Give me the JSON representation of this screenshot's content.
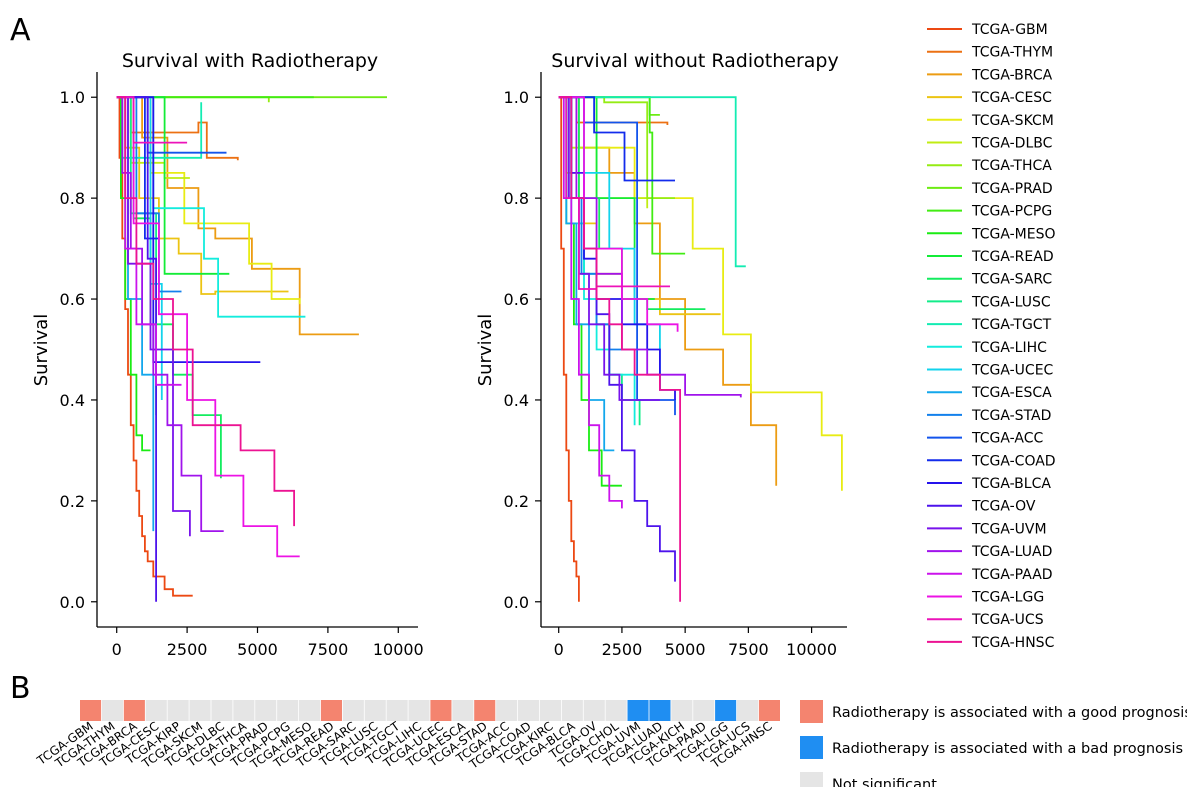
{
  "panels": {
    "a": "A",
    "b": "B"
  },
  "chart_data": [
    {
      "type": "line",
      "step": true,
      "title": "Survival with Radiotherapy",
      "xlabel": "",
      "ylabel": "Survival",
      "xlim": [
        -700,
        10700
      ],
      "ylim": [
        -0.05,
        1.05
      ],
      "xticks": [
        0,
        2500,
        5000,
        7500,
        10000
      ],
      "yticks": [
        0.0,
        0.2,
        0.4,
        0.6,
        0.8,
        1.0
      ],
      "series": [
        {
          "name": "TCGA-GBM",
          "x": [
            0,
            100,
            200,
            300,
            400,
            500,
            600,
            700,
            800,
            900,
            1000,
            1100,
            1300,
            1700,
            2000,
            2400,
            2700
          ],
          "y": [
            1,
            0.88,
            0.72,
            0.58,
            0.45,
            0.35,
            0.28,
            0.22,
            0.17,
            0.13,
            0.1,
            0.08,
            0.05,
            0.025,
            0.012,
            0.012,
            0.012
          ]
        },
        {
          "name": "TCGA-THYM",
          "x": [
            0,
            500,
            2900,
            3200,
            4300
          ],
          "y": [
            1,
            0.93,
            0.95,
            0.88,
            0.875
          ]
        },
        {
          "name": "TCGA-BRCA",
          "x": [
            0,
            900,
            1800,
            2900,
            3500,
            4800,
            6500,
            8600
          ],
          "y": [
            1,
            0.92,
            0.82,
            0.74,
            0.72,
            0.66,
            0.53,
            0.53
          ]
        },
        {
          "name": "TCGA-CESC",
          "x": [
            0,
            300,
            800,
            1500,
            2200,
            3000,
            3500,
            6100
          ],
          "y": [
            1,
            0.9,
            0.8,
            0.72,
            0.69,
            0.61,
            0.615,
            0.615
          ]
        },
        {
          "name": "TCGA-SKCM",
          "x": [
            0,
            1200,
            2400,
            4700,
            5500,
            6500
          ],
          "y": [
            1,
            0.85,
            0.75,
            0.67,
            0.6,
            0.59
          ]
        },
        {
          "name": "TCGA-DLBC",
          "x": [
            0,
            500,
            1700,
            2600
          ],
          "y": [
            1,
            0.87,
            0.84,
            0.84
          ]
        },
        {
          "name": "TCGA-THCA",
          "x": [
            0,
            5400
          ],
          "y": [
            1,
            0.99
          ]
        },
        {
          "name": "TCGA-PRAD",
          "x": [
            0,
            9600
          ],
          "y": [
            1,
            1.0
          ]
        },
        {
          "name": "TCGA-PCPG",
          "x": [
            0,
            7000
          ],
          "y": [
            1,
            1.0
          ]
        },
        {
          "name": "TCGA-MESO",
          "x": [
            0,
            150,
            300,
            500,
            700,
            900,
            1200
          ],
          "y": [
            1,
            0.8,
            0.6,
            0.45,
            0.33,
            0.3,
            0.3
          ]
        },
        {
          "name": "TCGA-READ",
          "x": [
            0,
            1700,
            4000
          ],
          "y": [
            1,
            0.65,
            0.65
          ]
        },
        {
          "name": "TCGA-SARC",
          "x": [
            0,
            600,
            1200,
            2000,
            2700,
            3700
          ],
          "y": [
            1,
            0.76,
            0.55,
            0.45,
            0.37,
            0.245
          ]
        },
        {
          "name": "TCGA-LUSC",
          "x": [
            0,
            500,
            1400
          ],
          "y": [
            1,
            0.77,
            0.37
          ]
        },
        {
          "name": "TCGA-TGCT",
          "x": [
            0,
            200,
            3000
          ],
          "y": [
            1,
            0.88,
            0.99
          ]
        },
        {
          "name": "TCGA-LIHC",
          "x": [
            0,
            1300,
            2500,
            3100,
            3600,
            6700
          ],
          "y": [
            1,
            0.78,
            0.78,
            0.68,
            0.565,
            0.565
          ]
        },
        {
          "name": "TCGA-UCEC",
          "x": [
            0,
            1200,
            1600
          ],
          "y": [
            1,
            0.63,
            0.4
          ]
        },
        {
          "name": "TCGA-ESCA",
          "x": [
            0,
            400,
            900,
            1300
          ],
          "y": [
            1,
            0.6,
            0.45,
            0.14
          ]
        },
        {
          "name": "TCGA-STAD",
          "x": [
            0,
            700,
            1500,
            2300
          ],
          "y": [
            1,
            0.77,
            0.615,
            0.615
          ]
        },
        {
          "name": "TCGA-ACC",
          "x": [
            0,
            1100,
            3900
          ],
          "y": [
            1,
            0.89,
            0.89
          ]
        },
        {
          "name": "TCGA-COAD",
          "x": [
            0,
            1000,
            1500
          ],
          "y": [
            1,
            0.72,
            0.72
          ]
        },
        {
          "name": "TCGA-BLCA",
          "x": [
            0,
            1300,
            5100
          ],
          "y": [
            1,
            0.475,
            0.475
          ]
        },
        {
          "name": "TCGA-OV",
          "x": [
            0,
            1100,
            1400
          ],
          "y": [
            1,
            0.68,
            0.0
          ]
        },
        {
          "name": "TCGA-UVM",
          "x": [
            0,
            400,
            1200,
            2000,
            2600
          ],
          "y": [
            1,
            0.67,
            0.5,
            0.18,
            0.13
          ]
        },
        {
          "name": "TCGA-LUAD",
          "x": [
            0,
            200,
            500,
            900,
            1300,
            1800,
            2300,
            3000,
            3800
          ],
          "y": [
            1,
            0.85,
            0.7,
            0.55,
            0.45,
            0.35,
            0.25,
            0.14,
            0.14
          ]
        },
        {
          "name": "TCGA-PAAD",
          "x": [
            0,
            300,
            700,
            1400,
            2300
          ],
          "y": [
            1,
            0.7,
            0.55,
            0.43,
            0.43
          ]
        },
        {
          "name": "TCGA-LGG",
          "x": [
            0,
            600,
            1500,
            2500,
            3500,
            4500,
            5700,
            6500
          ],
          "y": [
            1,
            0.75,
            0.57,
            0.4,
            0.25,
            0.15,
            0.09,
            0.09
          ]
        },
        {
          "name": "TCGA-UCS",
          "x": [
            0,
            600,
            1200,
            2500
          ],
          "y": [
            1,
            0.91,
            0.91,
            0.91
          ]
        },
        {
          "name": "TCGA-HNSC",
          "x": [
            0,
            300,
            700,
            1300,
            2000,
            2700,
            4400,
            5600,
            6300
          ],
          "y": [
            1,
            0.8,
            0.67,
            0.6,
            0.5,
            0.35,
            0.3,
            0.22,
            0.15
          ]
        }
      ]
    },
    {
      "type": "line",
      "step": true,
      "title": "Survival without Radiotherapy",
      "xlabel": "",
      "ylabel": "Survival",
      "xlim": [
        -700,
        11400
      ],
      "ylim": [
        -0.05,
        1.05
      ],
      "xticks": [
        0,
        2500,
        5000,
        7500,
        10000
      ],
      "yticks": [
        0.0,
        0.2,
        0.4,
        0.6,
        0.8,
        1.0
      ],
      "series": [
        {
          "name": "TCGA-GBM",
          "x": [
            0,
            100,
            200,
            300,
            400,
            500,
            600,
            700,
            800
          ],
          "y": [
            1,
            0.7,
            0.45,
            0.3,
            0.2,
            0.12,
            0.08,
            0.05,
            0.0
          ]
        },
        {
          "name": "TCGA-THYM",
          "x": [
            0,
            700,
            3000,
            4300
          ],
          "y": [
            1,
            0.95,
            0.95,
            0.945
          ]
        },
        {
          "name": "TCGA-BRCA",
          "x": [
            0,
            800,
            2000,
            3000,
            4000,
            5000,
            6500,
            7600,
            8600
          ],
          "y": [
            1,
            0.9,
            0.85,
            0.75,
            0.6,
            0.5,
            0.43,
            0.35,
            0.23
          ]
        },
        {
          "name": "TCGA-CESC",
          "x": [
            0,
            300,
            800,
            1500,
            2500,
            3500,
            4000,
            6400
          ],
          "y": [
            1,
            0.85,
            0.75,
            0.65,
            0.6,
            0.6,
            0.57,
            0.57
          ]
        },
        {
          "name": "TCGA-SKCM",
          "x": [
            0,
            1500,
            3000,
            5300,
            6500,
            7600,
            9100,
            10400,
            11200
          ],
          "y": [
            1,
            0.9,
            0.8,
            0.7,
            0.53,
            0.415,
            0.415,
            0.33,
            0.22
          ]
        },
        {
          "name": "TCGA-DLBC",
          "x": [
            0,
            500,
            1500,
            3500
          ],
          "y": [
            1,
            0.9,
            0.8,
            0.78
          ]
        },
        {
          "name": "TCGA-THCA",
          "x": [
            0,
            1800,
            3500,
            4600
          ],
          "y": [
            1,
            0.99,
            0.8,
            0.8
          ]
        },
        {
          "name": "TCGA-PRAD",
          "x": [
            0,
            3600,
            4000
          ],
          "y": [
            1,
            0.965,
            0.965
          ]
        },
        {
          "name": "TCGA-PCPG",
          "x": [
            0,
            3600,
            3700,
            5000
          ],
          "y": [
            1,
            0.93,
            0.69,
            0.69
          ]
        },
        {
          "name": "TCGA-MESO",
          "x": [
            0,
            300,
            600,
            900,
            1200,
            1700,
            2500
          ],
          "y": [
            1,
            0.75,
            0.55,
            0.4,
            0.3,
            0.23,
            0.23
          ]
        },
        {
          "name": "TCGA-READ",
          "x": [
            0,
            1500,
            3000,
            3800
          ],
          "y": [
            1,
            0.8,
            0.6,
            0.6
          ]
        },
        {
          "name": "TCGA-SARC",
          "x": [
            0,
            800,
            1600,
            2500,
            3500,
            5800
          ],
          "y": [
            1,
            0.8,
            0.7,
            0.6,
            0.58,
            0.58
          ]
        },
        {
          "name": "TCGA-LUSC",
          "x": [
            0,
            500,
            1000,
            1500,
            2000,
            2500,
            3200
          ],
          "y": [
            1,
            0.8,
            0.65,
            0.55,
            0.45,
            0.4,
            0.35
          ]
        },
        {
          "name": "TCGA-TGCT",
          "x": [
            0,
            7000,
            7400
          ],
          "y": [
            1,
            0.665,
            0.665
          ]
        },
        {
          "name": "TCGA-LIHC",
          "x": [
            0,
            500,
            1000,
            1500,
            2000,
            3000
          ],
          "y": [
            1,
            0.75,
            0.6,
            0.5,
            0.45,
            0.35
          ]
        },
        {
          "name": "TCGA-UCEC",
          "x": [
            0,
            1000,
            2000,
            3000,
            4000
          ],
          "y": [
            1,
            0.85,
            0.7,
            0.55,
            0.42
          ]
        },
        {
          "name": "TCGA-ESCA",
          "x": [
            0,
            300,
            700,
            1200,
            1800,
            2200
          ],
          "y": [
            1,
            0.75,
            0.55,
            0.4,
            0.3,
            0.3
          ]
        },
        {
          "name": "TCGA-STAD",
          "x": [
            0,
            400,
            900,
            1500,
            2000,
            2500
          ],
          "y": [
            1,
            0.8,
            0.65,
            0.55,
            0.5,
            0.5
          ]
        },
        {
          "name": "TCGA-ACC",
          "x": [
            0,
            1000,
            3100,
            4600
          ],
          "y": [
            1,
            0.95,
            0.4,
            0.37
          ]
        },
        {
          "name": "TCGA-COAD",
          "x": [
            0,
            1400,
            2600,
            4600
          ],
          "y": [
            1,
            0.93,
            0.835,
            0.835
          ]
        },
        {
          "name": "TCGA-BLCA",
          "x": [
            0,
            500,
            1000,
            1500,
            2500,
            3500,
            4000,
            4600
          ],
          "y": [
            1,
            0.8,
            0.68,
            0.6,
            0.55,
            0.5,
            0.42,
            0.4
          ]
        },
        {
          "name": "TCGA-OV",
          "x": [
            0,
            500,
            1000,
            1500,
            2000,
            2500,
            3000,
            3500,
            4000,
            4600
          ],
          "y": [
            1,
            0.85,
            0.7,
            0.57,
            0.43,
            0.3,
            0.2,
            0.15,
            0.1,
            0.04
          ]
        },
        {
          "name": "TCGA-UVM",
          "x": [
            0,
            400,
            800,
            1200,
            1800,
            2400,
            3200,
            4000
          ],
          "y": [
            1,
            0.8,
            0.65,
            0.55,
            0.45,
            0.4,
            0.4,
            0.4
          ]
        },
        {
          "name": "TCGA-LUAD",
          "x": [
            0,
            700,
            1500,
            2500,
            3500,
            5000,
            7200
          ],
          "y": [
            1,
            0.8,
            0.65,
            0.5,
            0.45,
            0.41,
            0.405
          ]
        },
        {
          "name": "TCGA-PAAD",
          "x": [
            0,
            200,
            500,
            800,
            1200,
            1600,
            2000,
            2500
          ],
          "y": [
            1,
            0.8,
            0.6,
            0.45,
            0.35,
            0.25,
            0.2,
            0.185
          ]
        },
        {
          "name": "TCGA-LGG",
          "x": [
            0,
            1000,
            2500,
            3500,
            4700
          ],
          "y": [
            1,
            0.7,
            0.6,
            0.55,
            0.535
          ]
        },
        {
          "name": "TCGA-UCS",
          "x": [
            0,
            300,
            800,
            1500,
            2500,
            3500,
            4400
          ],
          "y": [
            1,
            0.8,
            0.62,
            0.625,
            0.625,
            0.625,
            0.625
          ]
        },
        {
          "name": "TCGA-HNSC",
          "x": [
            0,
            500,
            1000,
            1500,
            2000,
            2500,
            3000,
            4000,
            4800
          ],
          "y": [
            1,
            0.8,
            0.7,
            0.6,
            0.55,
            0.5,
            0.45,
            0.42,
            0.0
          ]
        }
      ]
    },
    {
      "type": "heatmap",
      "categories": [
        "TCGA-GBM",
        "TCGA-THYM",
        "TCGA-BRCA",
        "TCGA-CESC",
        "TCGA-KIRP",
        "TCGA-SKCM",
        "TCGA-DLBC",
        "TCGA-THCA",
        "TCGA-PRAD",
        "TCGA-PCPG",
        "TCGA-MESO",
        "TCGA-READ",
        "TCGA-SARC",
        "TCGA-LUSC",
        "TCGA-TGCT",
        "TCGA-LIHC",
        "TCGA-UCEC",
        "TCGA-ESCA",
        "TCGA-STAD",
        "TCGA-ACC",
        "TCGA-COAD",
        "TCGA-KIRC",
        "TCGA-BLCA",
        "TCGA-OV",
        "TCGA-CHOL",
        "TCGA-UVM",
        "TCGA-LUAD",
        "TCGA-KICH",
        "TCGA-PAAD",
        "TCGA-LGG",
        "TCGA-UCS",
        "TCGA-HNSC"
      ],
      "values": [
        "good",
        "ns",
        "good",
        "ns",
        "ns",
        "ns",
        "ns",
        "ns",
        "ns",
        "ns",
        "ns",
        "good",
        "ns",
        "ns",
        "ns",
        "ns",
        "good",
        "ns",
        "good",
        "ns",
        "ns",
        "ns",
        "ns",
        "ns",
        "ns",
        "bad",
        "bad",
        "ns",
        "ns",
        "bad",
        "ns",
        "good"
      ],
      "legend": [
        {
          "key": "good",
          "label": "Radiotherapy is associated with a good prognosis",
          "color": "#f4846f"
        },
        {
          "key": "bad",
          "label": "Radiotherapy is associated with a bad prognosis",
          "color": "#1f8ef2"
        },
        {
          "key": "ns",
          "label": "Not significant",
          "color": "#e5e5e5"
        }
      ]
    }
  ]
}
